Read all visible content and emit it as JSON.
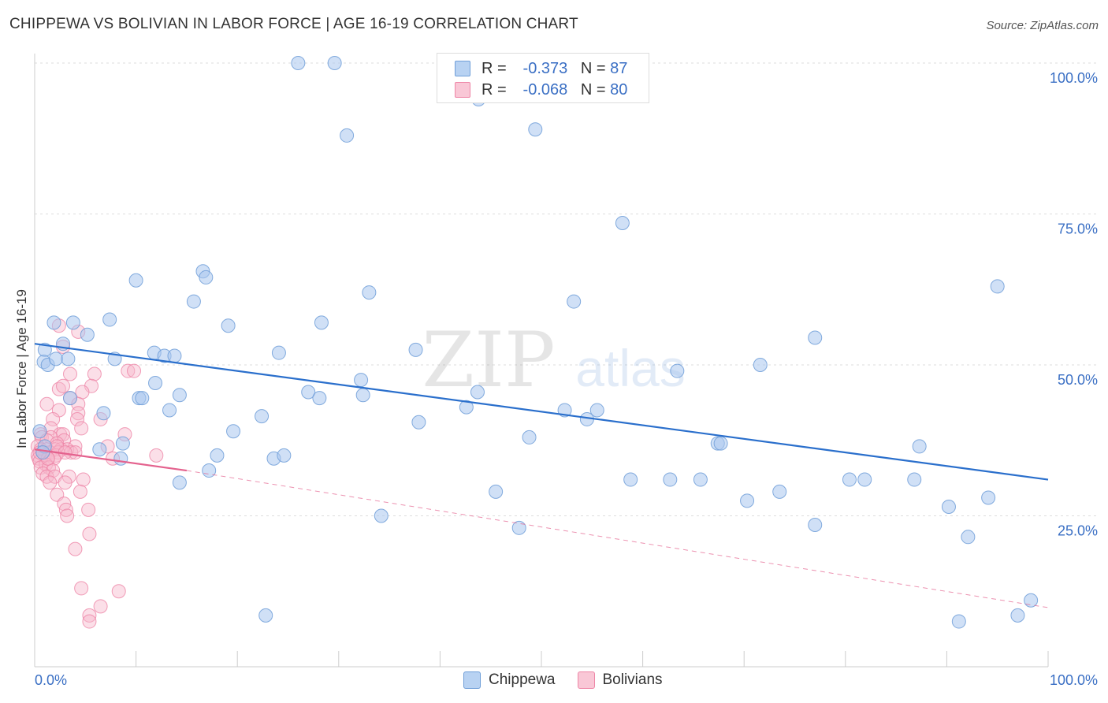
{
  "title": "CHIPPEWA VS BOLIVIAN IN LABOR FORCE | AGE 16-19 CORRELATION CHART",
  "source": "Source: ZipAtlas.com",
  "watermark": {
    "zip": "ZIP",
    "atlas": "atlas"
  },
  "legend_top": {
    "rows": [
      {
        "r_label": "R =",
        "r_value": "-0.373",
        "n_label": "N =",
        "n_value": "87"
      },
      {
        "r_label": "R =",
        "r_value": "-0.068",
        "n_label": "N =",
        "n_value": "80"
      }
    ]
  },
  "legend_bottom": {
    "chippewa": "Chippewa",
    "bolivians": "Bolivians"
  },
  "colors": {
    "chippewa_fill": "#a9c7ee",
    "chippewa_stroke": "#6f9ed8",
    "chippewa_line": "#2a6fcc",
    "bolivian_fill": "#f7b8cb",
    "bolivian_stroke": "#ee85a6",
    "bolivian_line": "#e4628e",
    "axis_label": "#3a6fc4",
    "grid": "#dddddd"
  },
  "chart_data": {
    "type": "scatter",
    "title": "CHIPPEWA VS BOLIVIAN IN LABOR FORCE | AGE 16-19 CORRELATION CHART",
    "xlabel": "",
    "ylabel": "In Labor Force | Age 16-19",
    "xlim": [
      0,
      100
    ],
    "ylim": [
      0,
      100
    ],
    "x_tick_labels": [
      "0.0%",
      "100.0%"
    ],
    "y_ticks": [
      25,
      50,
      75,
      100
    ],
    "y_tick_labels": [
      "25.0%",
      "50.0%",
      "75.0%",
      "100.0%"
    ],
    "grid": true,
    "legend_position": "top-center",
    "series": [
      {
        "name": "Chippewa",
        "r": -0.373,
        "n": 87,
        "trend": {
          "x": [
            0,
            100
          ],
          "y": [
            53.5,
            31.0
          ],
          "style": "solid"
        },
        "points": [
          [
            26.0,
            100.0
          ],
          [
            29.6,
            100.0
          ],
          [
            43.8,
            94.0
          ],
          [
            30.8,
            88.0
          ],
          [
            49.4,
            89.0
          ],
          [
            58.0,
            73.5
          ],
          [
            16.6,
            65.5
          ],
          [
            10.0,
            64.0
          ],
          [
            16.9,
            64.5
          ],
          [
            15.7,
            60.5
          ],
          [
            33.0,
            62.0
          ],
          [
            53.2,
            60.5
          ],
          [
            95.0,
            63.0
          ],
          [
            1.9,
            57.0
          ],
          [
            3.8,
            57.0
          ],
          [
            7.4,
            57.5
          ],
          [
            19.1,
            56.5
          ],
          [
            28.3,
            57.0
          ],
          [
            5.2,
            55.0
          ],
          [
            1.0,
            52.5
          ],
          [
            2.8,
            53.5
          ],
          [
            0.9,
            50.5
          ],
          [
            1.3,
            50.0
          ],
          [
            2.1,
            51.0
          ],
          [
            3.3,
            51.0
          ],
          [
            7.9,
            51.0
          ],
          [
            11.8,
            52.0
          ],
          [
            12.8,
            51.5
          ],
          [
            13.8,
            51.5
          ],
          [
            24.1,
            52.0
          ],
          [
            37.6,
            52.5
          ],
          [
            77.0,
            54.5
          ],
          [
            71.6,
            50.0
          ],
          [
            63.4,
            49.0
          ],
          [
            32.2,
            47.5
          ],
          [
            11.9,
            47.0
          ],
          [
            14.3,
            45.0
          ],
          [
            10.3,
            44.5
          ],
          [
            10.6,
            44.5
          ],
          [
            27.0,
            45.5
          ],
          [
            28.1,
            44.5
          ],
          [
            32.4,
            45.0
          ],
          [
            43.7,
            45.5
          ],
          [
            3.5,
            44.5
          ],
          [
            42.6,
            43.0
          ],
          [
            52.3,
            42.5
          ],
          [
            55.5,
            42.5
          ],
          [
            6.8,
            42.0
          ],
          [
            13.3,
            42.5
          ],
          [
            22.4,
            41.5
          ],
          [
            37.9,
            40.5
          ],
          [
            54.5,
            41.0
          ],
          [
            19.6,
            39.0
          ],
          [
            0.5,
            39.0
          ],
          [
            48.8,
            38.0
          ],
          [
            1.0,
            36.5
          ],
          [
            6.4,
            36.0
          ],
          [
            8.7,
            37.0
          ],
          [
            67.4,
            37.0
          ],
          [
            67.7,
            37.0
          ],
          [
            87.3,
            36.5
          ],
          [
            18.0,
            35.0
          ],
          [
            23.6,
            34.5
          ],
          [
            24.6,
            35.0
          ],
          [
            8.5,
            34.5
          ],
          [
            17.2,
            32.5
          ],
          [
            58.8,
            31.0
          ],
          [
            62.7,
            31.0
          ],
          [
            65.7,
            31.0
          ],
          [
            80.4,
            31.0
          ],
          [
            81.9,
            31.0
          ],
          [
            86.8,
            31.0
          ],
          [
            14.3,
            30.5
          ],
          [
            45.5,
            29.0
          ],
          [
            73.5,
            29.0
          ],
          [
            70.3,
            27.5
          ],
          [
            94.1,
            28.0
          ],
          [
            90.2,
            26.5
          ],
          [
            34.2,
            25.0
          ],
          [
            77.0,
            23.5
          ],
          [
            47.8,
            23.0
          ],
          [
            92.1,
            21.5
          ],
          [
            98.3,
            11.0
          ],
          [
            22.8,
            8.5
          ],
          [
            97.0,
            8.5
          ],
          [
            91.2,
            7.5
          ],
          [
            0.8,
            35.5
          ]
        ]
      },
      {
        "name": "Bolivians",
        "r": -0.068,
        "n": 80,
        "trend": {
          "x": [
            0,
            15
          ],
          "y": [
            36.0,
            32.5
          ],
          "style": "solid",
          "extended": {
            "x": [
              15,
              100
            ],
            "y": [
              32.5,
              9.8
            ],
            "style": "dashed"
          }
        },
        "points": [
          [
            2.4,
            56.5
          ],
          [
            4.3,
            55.5
          ],
          [
            2.8,
            53.0
          ],
          [
            9.2,
            49.0
          ],
          [
            9.8,
            49.0
          ],
          [
            3.5,
            48.5
          ],
          [
            5.9,
            48.5
          ],
          [
            2.4,
            46.0
          ],
          [
            2.8,
            46.5
          ],
          [
            5.6,
            46.5
          ],
          [
            4.7,
            45.5
          ],
          [
            3.5,
            44.5
          ],
          [
            1.2,
            43.5
          ],
          [
            4.3,
            43.5
          ],
          [
            2.4,
            42.5
          ],
          [
            4.3,
            42.0
          ],
          [
            1.8,
            41.0
          ],
          [
            4.2,
            41.0
          ],
          [
            6.5,
            41.0
          ],
          [
            1.6,
            39.5
          ],
          [
            4.6,
            39.5
          ],
          [
            0.6,
            38.5
          ],
          [
            2.5,
            38.5
          ],
          [
            2.8,
            38.5
          ],
          [
            8.9,
            38.5
          ],
          [
            0.7,
            38.0
          ],
          [
            1.6,
            38.0
          ],
          [
            2.9,
            37.5
          ],
          [
            1.2,
            37.5
          ],
          [
            2.2,
            37.0
          ],
          [
            4.0,
            36.5
          ],
          [
            0.3,
            36.5
          ],
          [
            0.6,
            36.0
          ],
          [
            1.2,
            36.0
          ],
          [
            2.0,
            36.0
          ],
          [
            2.6,
            36.0
          ],
          [
            3.2,
            36.0
          ],
          [
            7.2,
            36.5
          ],
          [
            0.8,
            35.5
          ],
          [
            1.5,
            35.5
          ],
          [
            2.3,
            35.5
          ],
          [
            3.6,
            35.5
          ],
          [
            4.0,
            35.5
          ],
          [
            0.3,
            35.0
          ],
          [
            1.0,
            35.0
          ],
          [
            2.1,
            35.0
          ],
          [
            12.0,
            35.0
          ],
          [
            0.4,
            34.5
          ],
          [
            1.3,
            34.5
          ],
          [
            1.9,
            34.5
          ],
          [
            0.5,
            34.0
          ],
          [
            1.1,
            33.5
          ],
          [
            0.6,
            33.0
          ],
          [
            1.4,
            33.0
          ],
          [
            1.8,
            32.5
          ],
          [
            0.8,
            32.0
          ],
          [
            1.2,
            31.5
          ],
          [
            2.0,
            31.5
          ],
          [
            3.4,
            31.5
          ],
          [
            4.8,
            31.0
          ],
          [
            1.5,
            30.5
          ],
          [
            3.0,
            30.5
          ],
          [
            4.5,
            29.0
          ],
          [
            2.2,
            28.5
          ],
          [
            2.9,
            27.0
          ],
          [
            3.1,
            26.0
          ],
          [
            5.3,
            26.0
          ],
          [
            3.2,
            25.0
          ],
          [
            5.4,
            22.0
          ],
          [
            4.0,
            19.5
          ],
          [
            4.6,
            13.0
          ],
          [
            8.3,
            12.5
          ],
          [
            6.5,
            10.0
          ],
          [
            5.4,
            8.5
          ],
          [
            5.4,
            7.5
          ],
          [
            7.7,
            34.5
          ],
          [
            1.3,
            34.5
          ],
          [
            2.2,
            36.5
          ],
          [
            3.0,
            35.5
          ],
          [
            0.5,
            35.5
          ]
        ]
      }
    ]
  }
}
